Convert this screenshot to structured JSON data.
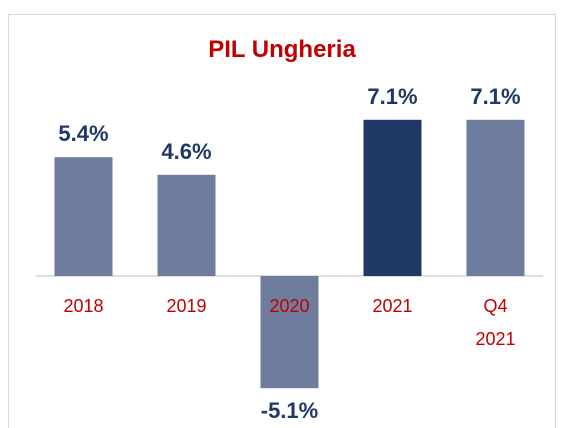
{
  "chart_data": {
    "type": "bar",
    "title": "PIL Ungheria",
    "categories": [
      "2018",
      "2019",
      "2020",
      "2021",
      "Q4 2021"
    ],
    "values": [
      5.4,
      4.6,
      -5.1,
      7.1,
      7.1
    ],
    "value_labels": [
      "5.4%",
      "4.6%",
      "-5.1%",
      "7.1%",
      "7.1%"
    ],
    "colors": [
      "#6e7c9e",
      "#6e7c9e",
      "#6e7c9e",
      "#1f3864",
      "#6e7c9e"
    ]
  }
}
